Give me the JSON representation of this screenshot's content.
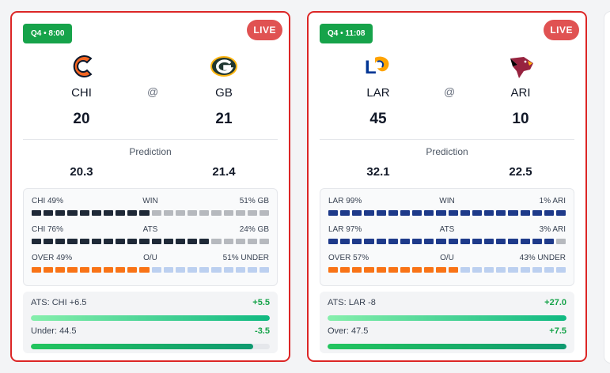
{
  "games": [
    {
      "quarter": "Q4 • 8:00",
      "status": "LIVE",
      "away": {
        "abbr": "CHI",
        "score": "20",
        "prediction": "20.3",
        "logo": "bears-logo-icon"
      },
      "home": {
        "abbr": "GB",
        "score": "21",
        "prediction": "21.4",
        "logo": "packers-logo-icon"
      },
      "at": "@",
      "prediction_label": "Prediction",
      "bars": [
        {
          "left": "CHI 49%",
          "center": "WIN",
          "right": "51% GB",
          "left_fraction": 0.49,
          "left_color": "#1f2937",
          "right_color": "#b6b9be"
        },
        {
          "left": "CHI 76%",
          "center": "ATS",
          "right": "24% GB",
          "left_fraction": 0.76,
          "left_color": "#1f2937",
          "right_color": "#b6b9be"
        },
        {
          "left": "OVER 49%",
          "center": "O/U",
          "right": "51% UNDER",
          "left_fraction": 0.49,
          "left_color": "#f97316",
          "right_color": "#bcd0f0"
        }
      ],
      "ats": [
        {
          "label": "ATS: CHI +6.5",
          "value": "+5.5",
          "fill_fraction": 1.0,
          "style": "light"
        },
        {
          "label": "Under: 44.5",
          "value": "-3.5",
          "fill_fraction": 0.93,
          "style": "dark"
        }
      ]
    },
    {
      "quarter": "Q4 • 11:08",
      "status": "LIVE",
      "away": {
        "abbr": "LAR",
        "score": "45",
        "prediction": "32.1",
        "logo": "rams-logo-icon"
      },
      "home": {
        "abbr": "ARI",
        "score": "10",
        "prediction": "22.5",
        "logo": "cardinals-logo-icon"
      },
      "at": "@",
      "prediction_label": "Prediction",
      "bars": [
        {
          "left": "LAR 99%",
          "center": "WIN",
          "right": "1% ARI",
          "left_fraction": 0.99,
          "left_color": "#1e3a8a",
          "right_color": "#b6b9be"
        },
        {
          "left": "LAR 97%",
          "center": "ATS",
          "right": "3% ARI",
          "left_fraction": 0.97,
          "left_color": "#1e3a8a",
          "right_color": "#b6b9be"
        },
        {
          "left": "OVER 57%",
          "center": "O/U",
          "right": "43% UNDER",
          "left_fraction": 0.57,
          "left_color": "#f97316",
          "right_color": "#bcd0f0"
        }
      ],
      "ats": [
        {
          "label": "ATS: LAR -8",
          "value": "+27.0",
          "fill_fraction": 1.0,
          "style": "light"
        },
        {
          "label": "Over: 47.5",
          "value": "+7.5",
          "fill_fraction": 1.0,
          "style": "dark"
        }
      ]
    }
  ]
}
